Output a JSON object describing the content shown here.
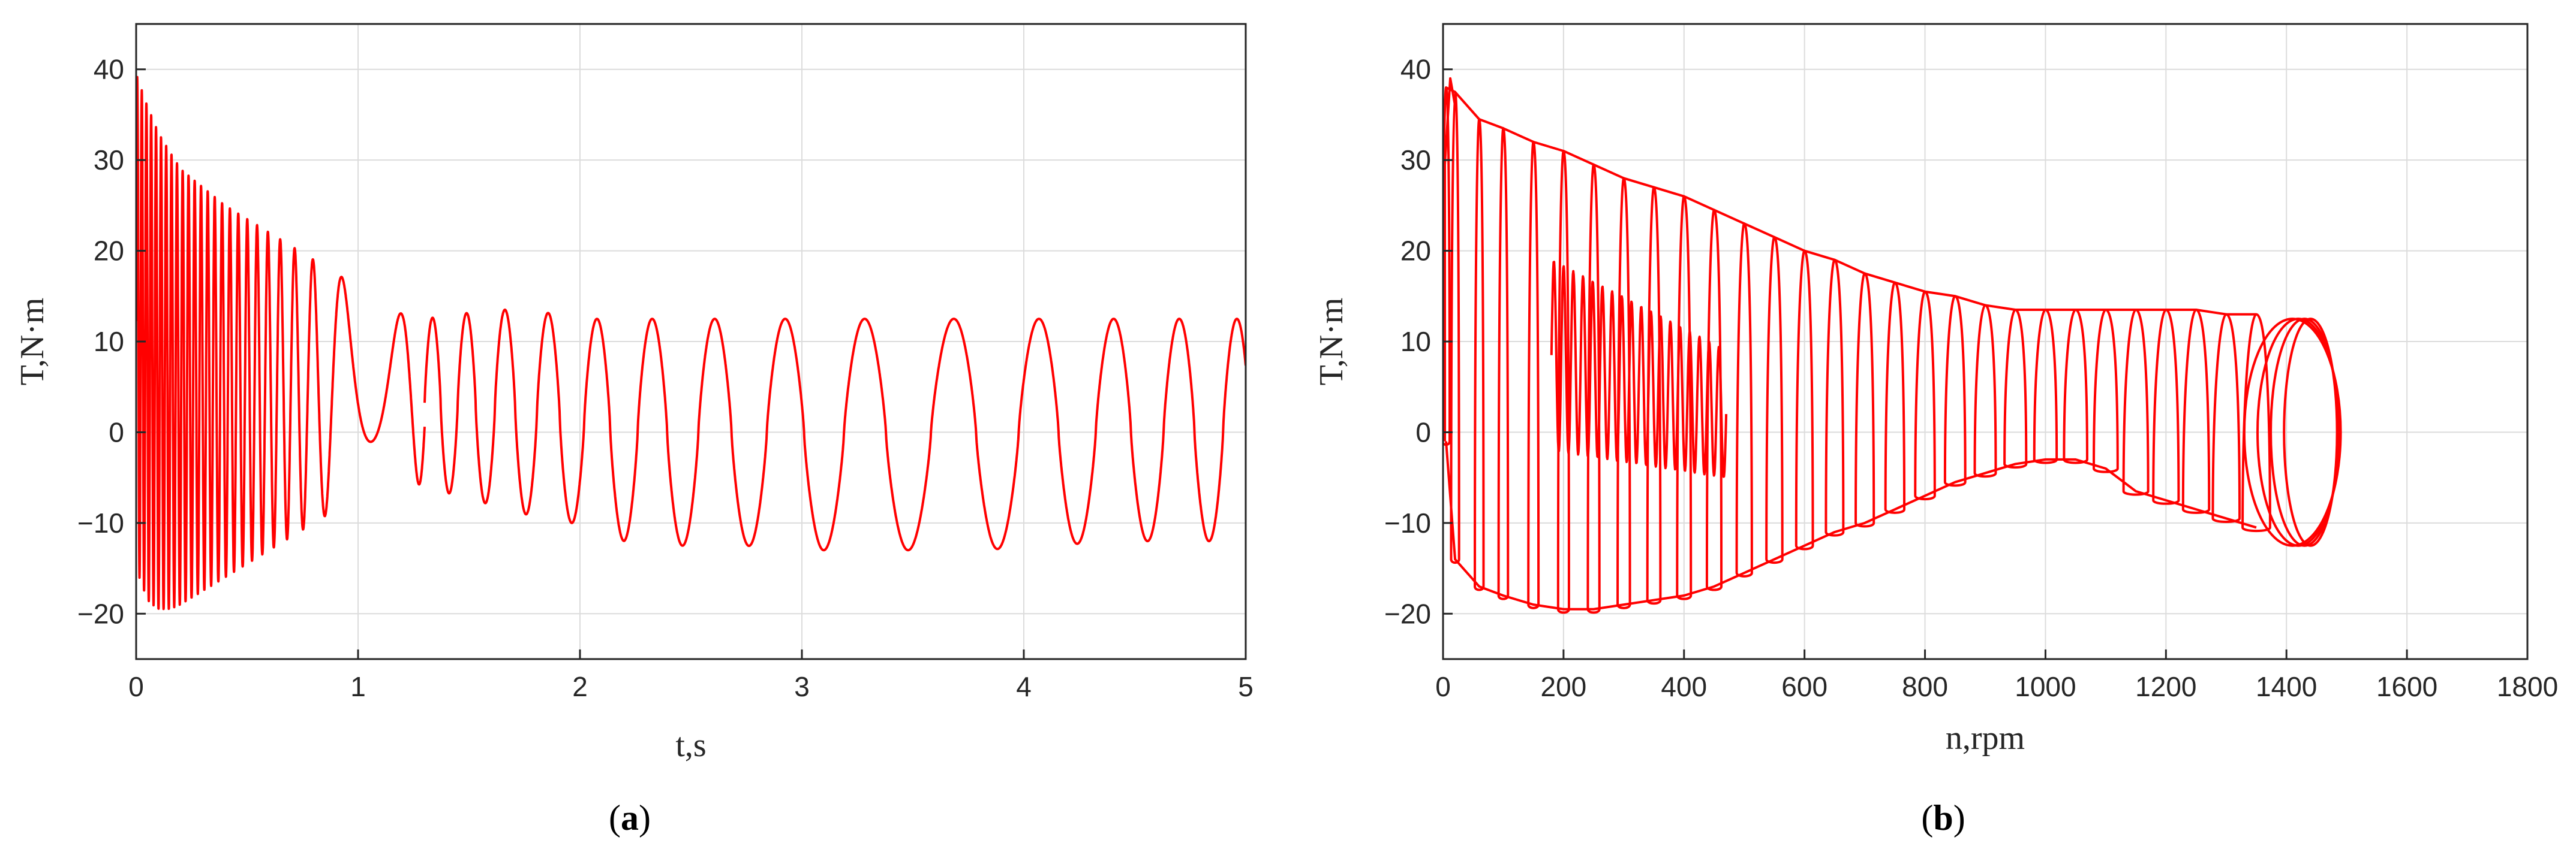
{
  "colors": {
    "series": "#ff0000",
    "axis": "#262626",
    "grid": "#dcdcdc"
  },
  "chart_data": [
    {
      "panel": "a",
      "caption_open": "(",
      "caption_letter": "a",
      "caption_close": ")",
      "type": "line",
      "xlabel": "t,s",
      "ylabel": "T,N·m",
      "xlim": [
        0,
        5
      ],
      "ylim": [
        -25,
        45
      ],
      "xticks": [
        "0",
        "1",
        "2",
        "3",
        "4",
        "5"
      ],
      "yticks": [
        "−20",
        "−10",
        "0",
        "10",
        "20",
        "30",
        "40"
      ],
      "grid": true,
      "series": [
        {
          "description": "oscillating torque: dense decaying oscillation 0–1.3 s, then ~12.5 N·m peaks / −10 to −13 N·m troughs",
          "x": [
            0.0,
            0.05,
            0.1,
            0.15,
            0.2,
            0.3,
            0.4,
            0.5,
            0.6,
            0.7,
            0.8,
            0.9,
            1.0,
            1.1,
            1.2,
            1.3,
            1.45,
            1.6,
            1.75,
            1.9,
            2.0,
            2.2,
            2.45,
            2.75,
            3.0,
            3.15,
            3.4,
            3.55,
            3.85,
            3.97,
            4.2,
            4.3,
            4.5,
            4.62,
            4.8,
            5.0
          ],
          "y_max": [
            39.5,
            36,
            33,
            31,
            29,
            27,
            25,
            23.5,
            22,
            20.5,
            19,
            17.5,
            16,
            14.5,
            13,
            12.5,
            13,
            13.5,
            13.5,
            13,
            12.5,
            12.5,
            12.5,
            12.5,
            12.5,
            12.5,
            12.5,
            12.5,
            12.5,
            12.5,
            12.5,
            12.5,
            12.5,
            12.5,
            12.5,
            12.5
          ],
          "y_min": [
            -15,
            -18.5,
            -19.5,
            -19.5,
            -19,
            -17.5,
            -16,
            -14.5,
            -13,
            -11.5,
            -10,
            -8.5,
            -7,
            -6,
            -5,
            -6,
            -7,
            -8,
            -9,
            -10,
            -10,
            -12,
            -12.5,
            -12.5,
            -13,
            -13,
            -13,
            -13,
            -13,
            -12.5,
            -12.5,
            -12,
            -12,
            -12,
            -12,
            -12
          ]
        }
      ]
    },
    {
      "panel": "b",
      "caption_open": "(",
      "caption_letter": "b",
      "caption_close": ")",
      "type": "line",
      "xlabel": "n,rpm",
      "ylabel": "T,N·m",
      "xlim": [
        0,
        1800
      ],
      "ylim": [
        -25,
        45
      ],
      "xticks": [
        "0",
        "200",
        "400",
        "600",
        "800",
        "1000",
        "1200",
        "1400",
        "1600",
        "1800"
      ],
      "yticks": [
        "−20",
        "−10",
        "0",
        "10",
        "20",
        "30",
        "40"
      ],
      "grid": true,
      "series": [
        {
          "description": "torque–speed trajectory: loops with decaying peaks and rising minima, spiralling into a limit cycle around n≈1400 rpm",
          "n": [
            5,
            20,
            60,
            100,
            150,
            200,
            250,
            300,
            350,
            400,
            450,
            500,
            550,
            600,
            650,
            700,
            750,
            800,
            850,
            900,
            950,
            1000,
            1050,
            1100,
            1150,
            1200,
            1250,
            1300,
            1350
          ],
          "peak": [
            38,
            37.5,
            34.5,
            33.5,
            32,
            31,
            29.5,
            28,
            27,
            26,
            24.5,
            23,
            21.5,
            20,
            19,
            17.5,
            16.5,
            15.5,
            15,
            14,
            13.5,
            13.5,
            13.5,
            13.5,
            13.5,
            13.5,
            13.5,
            13,
            13
          ],
          "trough": [
            -1,
            -14,
            -17,
            -18,
            -19,
            -19.5,
            -19.5,
            -19,
            -18.5,
            -18,
            -17,
            -15.5,
            -14,
            -12.5,
            -11,
            -10,
            -8.5,
            -7,
            -5.5,
            -4.5,
            -3.5,
            -3,
            -3,
            -4,
            -6.5,
            -7.5,
            -8.5,
            -9.5,
            -10.5
          ],
          "limit_cycle": {
            "n_range": [
              1330,
              1490
            ],
            "t_range": [
              -12.5,
              12.5
            ]
          }
        }
      ]
    }
  ]
}
